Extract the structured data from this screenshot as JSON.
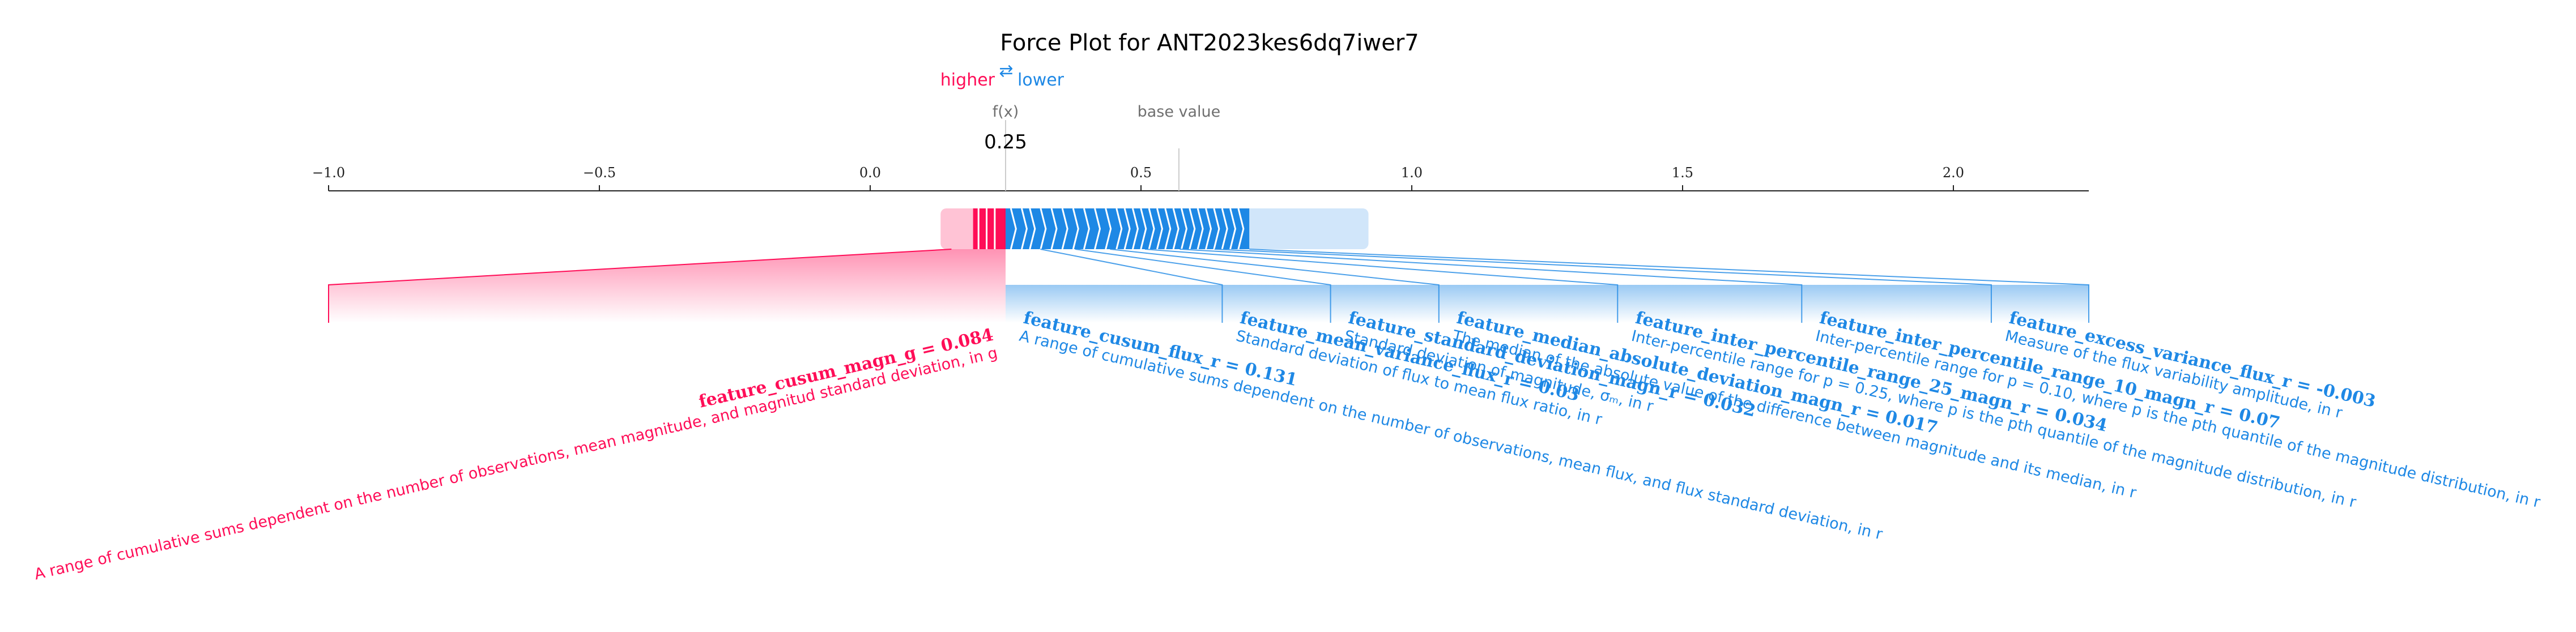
{
  "chart_data": {
    "type": "force",
    "title": "Force Plot for ANT2023kes6dq7iwer7",
    "legend": {
      "higher": "higher",
      "lower": "lower",
      "arrow": "⇄"
    },
    "fx_label": "f(x)",
    "fx_value": 0.25,
    "fx_display": "0.25",
    "base_value_label": "base value",
    "base_value": 0.57,
    "xlim": [
      -1.0,
      2.25
    ],
    "ticks": [
      {
        "value": -1.0,
        "label": "−1.0"
      },
      {
        "value": -0.5,
        "label": "−0.5"
      },
      {
        "value": 0.0,
        "label": "0.0"
      },
      {
        "value": 0.5,
        "label": "0.5"
      },
      {
        "value": 1.0,
        "label": "1.0"
      },
      {
        "value": 1.5,
        "label": "1.5"
      },
      {
        "value": 2.0,
        "label": "2.0"
      }
    ],
    "colors": {
      "positive": "#ff0d57",
      "negative": "#1e88e5",
      "positive_light": "#ffc3d5",
      "negative_light": "#d1e6fa"
    },
    "push_lower_end": 0.7,
    "positive_features": [
      {
        "name": "feature_cusum_magn_g = 0.084",
        "description": "A range of cumulative sums dependent on the number of observations, mean magnitude, and magnitud standard deviation, in g",
        "end_value": -1.0
      }
    ],
    "negative_features": [
      {
        "name": "feature_cusum_flux_r = 0.131",
        "description": "A range of cumulative sums dependent on the number of observations, mean flux, and flux standard deviation, in r",
        "end_value": 0.65
      },
      {
        "name": "feature_mean_variance_flux_r = 0.03",
        "description": "Standard deviation of flux to mean flux ratio, in r",
        "end_value": 0.85
      },
      {
        "name": "feature_standard_deviation_magn_r = 0.032",
        "description": "Standard deviation of magnitude, σₘ, in r",
        "end_value": 1.05
      },
      {
        "name": "feature_median_absolute_deviation_magn_r = 0.017",
        "description": "The median of the absolute value of the difference between magnitude and its median, in r",
        "end_value": 1.38
      },
      {
        "name": "feature_inter_percentile_range_25_magn_r = 0.034",
        "description": "Inter-percentile range for p = 0.25, where p is the pth quantile of the magnitude distribution, in r",
        "end_value": 1.72
      },
      {
        "name": "feature_inter_percentile_range_10_magn_r = 0.07",
        "description": "Inter-percentile range for p = 0.10, where p is the pth quantile of the magnitude distribution, in r",
        "end_value": 2.07
      },
      {
        "name": "feature_excess_variance_flux_r = -0.003",
        "description": "Measure of the flux variability amplitude, in r",
        "end_value": 2.25
      }
    ]
  }
}
